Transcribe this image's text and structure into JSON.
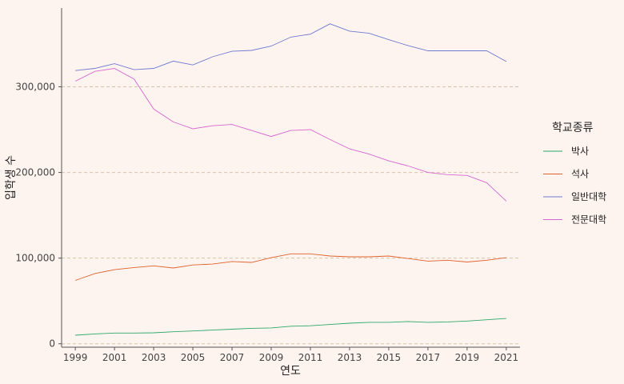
{
  "chart_data": {
    "type": "line",
    "title": "",
    "xlabel": "연도",
    "ylabel": "입학생 수",
    "x": [
      1999,
      2000,
      2001,
      2002,
      2003,
      2004,
      2005,
      2006,
      2007,
      2008,
      2009,
      2010,
      2011,
      2012,
      2013,
      2014,
      2015,
      2016,
      2017,
      2018,
      2019,
      2020,
      2021
    ],
    "xticks": [
      "1999",
      "2001",
      "2003",
      "2005",
      "2007",
      "2009",
      "2011",
      "2013",
      "2015",
      "2017",
      "2019",
      "2021"
    ],
    "ylim": [
      -4000,
      392000
    ],
    "yticks": [
      0,
      100000,
      200000,
      300000
    ],
    "ytick_labels": [
      "0",
      "100,000",
      "200,000",
      "300,000"
    ],
    "grid": "horizontal dashed",
    "legend": {
      "title": "학교종류",
      "placement": "right"
    },
    "series": [
      {
        "name": "박사",
        "color": "#2ca86b",
        "values": [
          10000,
          11500,
          12500,
          12500,
          12800,
          14000,
          15000,
          16000,
          17000,
          18000,
          18500,
          20500,
          21000,
          22500,
          24000,
          25000,
          25000,
          26000,
          25000,
          25500,
          26500,
          28000,
          29500
        ]
      },
      {
        "name": "석사",
        "color": "#e0622e",
        "values": [
          74000,
          82000,
          86500,
          89000,
          91000,
          88500,
          92000,
          93000,
          96000,
          95000,
          100500,
          105000,
          105000,
          102500,
          101500,
          101500,
          102500,
          99500,
          96500,
          97500,
          95500,
          97500,
          100500
        ]
      },
      {
        "name": "일반대학",
        "color": "#6f7bd0",
        "values": [
          319000,
          321500,
          327000,
          320000,
          321500,
          330000,
          325500,
          335000,
          341500,
          342500,
          347500,
          358000,
          361500,
          373500,
          365000,
          362500,
          355000,
          348000,
          342000,
          342000,
          342000,
          342000,
          329500
        ]
      },
      {
        "name": "전문대학",
        "color": "#d667d0",
        "values": [
          306500,
          318000,
          321500,
          309000,
          274000,
          259000,
          251000,
          254500,
          256000,
          249000,
          242000,
          249000,
          250000,
          238500,
          227500,
          221500,
          213500,
          207500,
          200000,
          197500,
          196500,
          188000,
          166500
        ]
      }
    ]
  }
}
